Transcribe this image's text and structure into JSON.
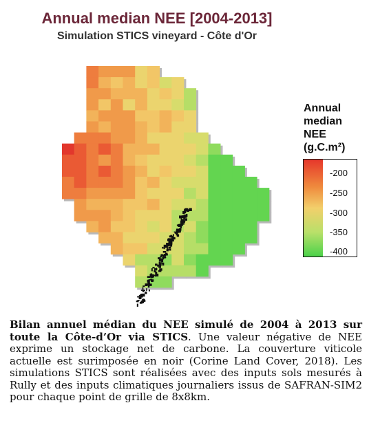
{
  "map": {
    "title": "Annual median NEE [2004-2013]",
    "subtitle": "Simulation STICS vineyard - Côte d'Or",
    "legend": {
      "title_lines": [
        "Annual",
        "median",
        "NEE",
        "(g.C.m²)"
      ],
      "ticks": [
        "-200",
        "-250",
        "-300",
        "-350",
        "-400"
      ],
      "colors": {
        "high": "#e6372b",
        "mid": "#f2cf6b",
        "low": "#4bd24a"
      }
    },
    "regions": [
      "Côte d'Or"
    ],
    "overlay": "vineyard cover (black)"
  },
  "caption": {
    "bold": "Bilan annuel médian du NEE simulé de 2004 à 2013 sur toute la Côte-d’Or via STICS",
    "text": ". Une valeur négative de NEE exprime un stockage net de carbone. La couverture viticole actuelle est surimposée en noir (Corine Land Cover, 2018). Les simulations STICS sont réalisées avec des inputs sols mesurés à Rully et des inputs climatiques journaliers issus de SAFRAN-SIM2 pour chaque point de grille de 8x8km."
  }
}
